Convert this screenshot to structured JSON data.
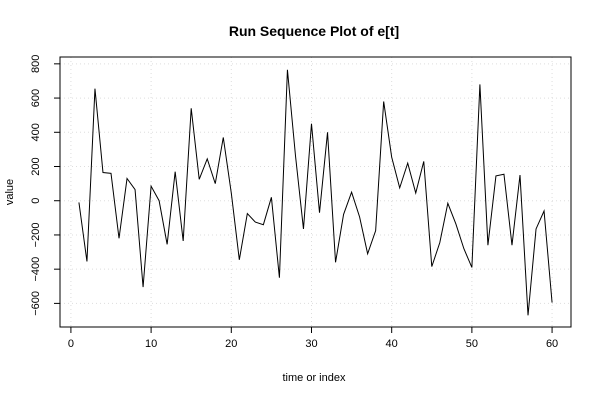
{
  "chart_data": {
    "type": "line",
    "title": "Run Sequence Plot of e[t]",
    "xlabel": "time or index",
    "ylabel": "value",
    "xlim": [
      -1.36,
      62.36
    ],
    "ylim": [
      -738,
      840
    ],
    "xticks": [
      0,
      10,
      20,
      30,
      40,
      50,
      60
    ],
    "yticks": [
      -600,
      -400,
      -200,
      0,
      200,
      400,
      600,
      800
    ],
    "ytick_labels": [
      "−600",
      "−400",
      "−200",
      "0",
      "200",
      "400",
      "600",
      "800"
    ],
    "grid": true,
    "line_color": "#000000",
    "grid_color": "#dddddd",
    "series": [
      {
        "x": [
          1,
          2,
          3,
          4,
          5,
          6,
          7,
          8,
          9,
          10,
          11,
          12,
          13,
          14,
          15,
          16,
          17,
          18,
          19,
          20,
          21,
          22,
          23,
          24,
          25,
          26,
          27,
          28,
          29,
          30,
          31,
          32,
          33,
          34,
          35,
          36,
          37,
          38,
          39,
          40,
          41,
          42,
          43,
          44,
          45,
          46,
          47,
          48,
          49,
          50,
          51,
          52,
          53,
          54,
          55,
          56,
          57,
          58,
          59,
          60
        ],
        "values": [
          -10,
          -355,
          655,
          165,
          160,
          -220,
          130,
          65,
          -505,
          85,
          0,
          -255,
          170,
          -235,
          540,
          125,
          245,
          100,
          370,
          45,
          -345,
          -75,
          -125,
          -140,
          20,
          -450,
          765,
          265,
          -165,
          450,
          -70,
          400,
          -360,
          -80,
          50,
          -95,
          -310,
          -175,
          580,
          255,
          75,
          220,
          45,
          230,
          -385,
          -245,
          -15,
          -135,
          -280,
          -390,
          680,
          -260,
          145,
          155,
          -260,
          150,
          -670,
          -165,
          -60,
          -595
        ]
      }
    ]
  }
}
